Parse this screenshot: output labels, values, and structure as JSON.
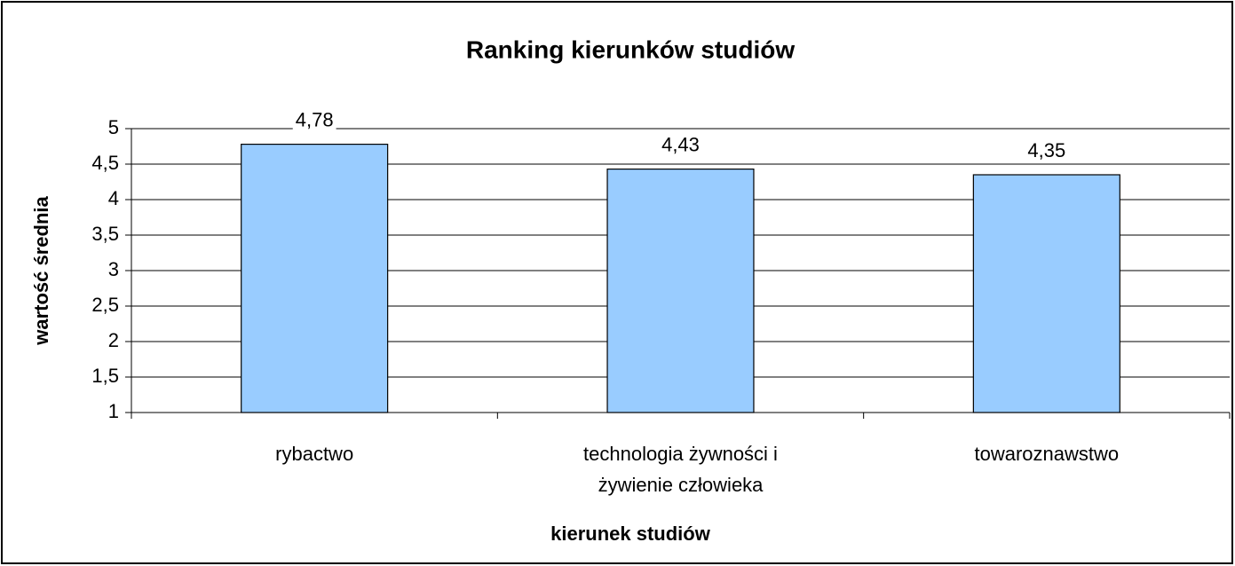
{
  "chart_data": {
    "type": "bar",
    "title": "Ranking kierunków studiów",
    "x_label": "kierunek studiów",
    "y_label": "wartość średnia",
    "categories": [
      "rybactwo",
      "technologia żywności i żywienie człowieka",
      "towaroznawstwo"
    ],
    "values": [
      4.78,
      4.43,
      4.35
    ],
    "value_labels": [
      "4,78",
      "4,43",
      "4,35"
    ],
    "color": "#99ccff",
    "ylim": [
      1,
      5
    ],
    "yticks": [
      1,
      {
        "value": 1.5,
        "label": "1,5"
      },
      2,
      {
        "value": 2.5,
        "label": "2,5"
      },
      3,
      {
        "value": 3.5,
        "label": "3,5"
      },
      4,
      {
        "value": 4.5,
        "label": "4,5"
      },
      5
    ],
    "grid": true
  }
}
